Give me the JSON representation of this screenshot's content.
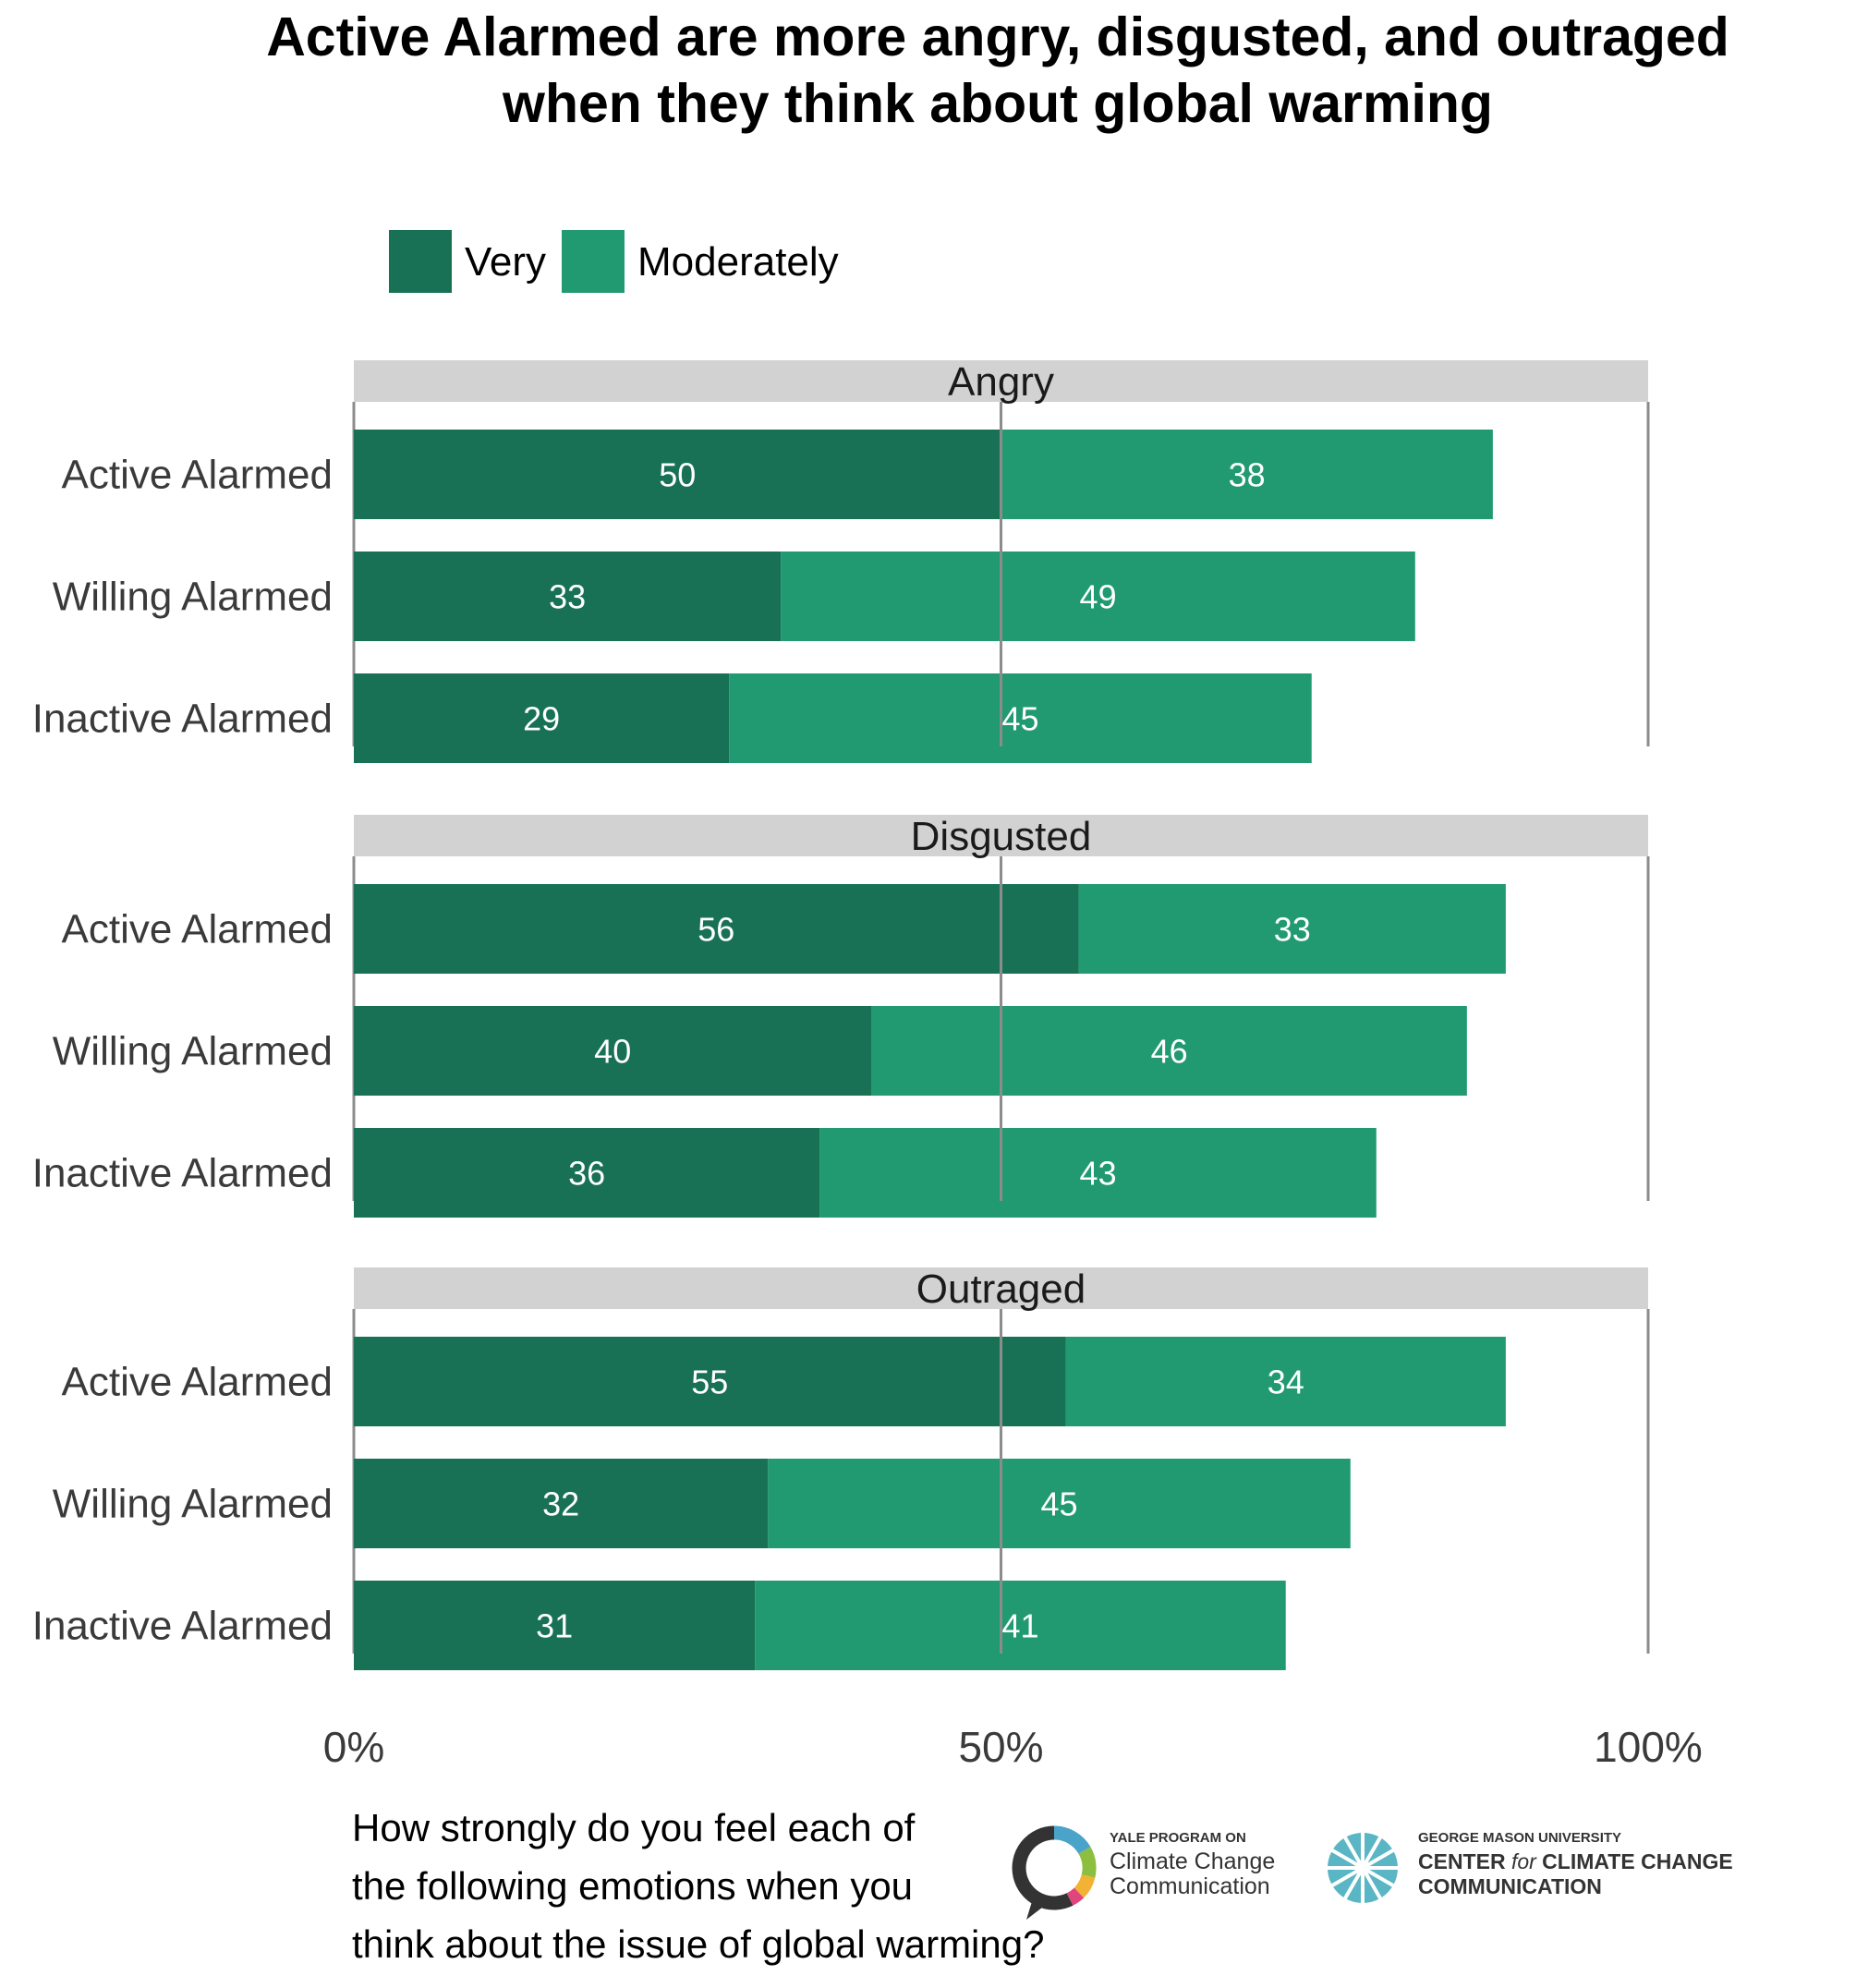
{
  "title_lines": [
    "Active Alarmed are more angry, disgusted, and outraged",
    "when they think about global warming"
  ],
  "colors": {
    "very": "#187155",
    "moderately": "#219a72",
    "facet_strip": "#d2d2d2",
    "axis": "#8c8c8c"
  },
  "question_lines": [
    "How strongly do you feel each of",
    "the following emotions when you",
    "think about the issue of global warming?"
  ],
  "logos": {
    "yale": {
      "small": "YALE PROGRAM ON",
      "line1": "Climate Change",
      "line2": "Communication"
    },
    "gmu": {
      "small": "GEORGE MASON UNIVERSITY",
      "line1_a": "CENTER ",
      "line1_b": "for",
      "line1_c": " CLIMATE CHANGE",
      "line2": "COMMUNICATION"
    }
  },
  "chart_data": {
    "type": "bar",
    "orientation": "horizontal",
    "stacked": true,
    "title": "Active Alarmed are more angry, disgusted, and outraged when they think about global warming",
    "legend": [
      "Very",
      "Moderately"
    ],
    "legend_position": "top",
    "xlim": [
      0,
      100
    ],
    "x_ticks": [
      "0%",
      "50%",
      "100%"
    ],
    "x_tick_values": [
      0,
      50,
      100
    ],
    "categories": [
      "Active Alarmed",
      "Willing Alarmed",
      "Inactive Alarmed"
    ],
    "facets": [
      {
        "name": "Angry",
        "series": [
          {
            "name": "Very",
            "values": [
              50,
              33,
              29
            ]
          },
          {
            "name": "Moderately",
            "values": [
              38,
              49,
              45
            ]
          }
        ]
      },
      {
        "name": "Disgusted",
        "series": [
          {
            "name": "Very",
            "values": [
              56,
              40,
              36
            ]
          },
          {
            "name": "Moderately",
            "values": [
              33,
              46,
              43
            ]
          }
        ]
      },
      {
        "name": "Outraged",
        "series": [
          {
            "name": "Very",
            "values": [
              55,
              32,
              31
            ]
          },
          {
            "name": "Moderately",
            "values": [
              34,
              45,
              41
            ]
          }
        ]
      }
    ]
  }
}
